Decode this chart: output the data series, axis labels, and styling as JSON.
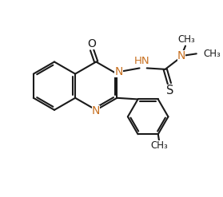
{
  "background_color": "#ffffff",
  "line_color": "#1a1a1a",
  "N_color": "#c87020",
  "O_color": "#1a1a1a",
  "S_color": "#1a1a1a",
  "bond_lw": 1.5,
  "figsize": [
    2.79,
    2.47
  ],
  "dpi": 100,
  "xlim": [
    0,
    9
  ],
  "ylim": [
    0,
    8.5
  ]
}
